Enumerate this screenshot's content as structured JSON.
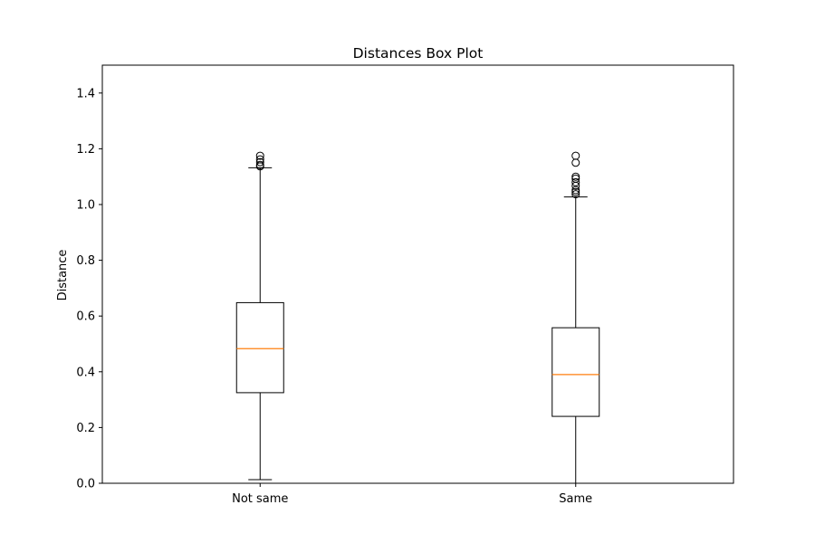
{
  "chart_data": {
    "type": "box",
    "title": "Distances Box Plot",
    "xlabel": "",
    "ylabel": "Distance",
    "ylim": [
      0,
      1.5
    ],
    "yticks": [
      0.0,
      0.2,
      0.4,
      0.6,
      0.8,
      1.0,
      1.2,
      1.4
    ],
    "ytick_labels": [
      "0.0",
      "0.2",
      "0.4",
      "0.6",
      "0.8",
      "1.0",
      "1.2",
      "1.4"
    ],
    "grid": false,
    "categories": [
      "Not same",
      "Same"
    ],
    "boxes": [
      {
        "category": "Not same",
        "whisker_low": 0.013,
        "q1": 0.325,
        "median": 0.483,
        "q3": 0.648,
        "whisker_high": 1.132,
        "outliers": [
          1.137,
          1.142,
          1.152,
          1.162,
          1.175
        ]
      },
      {
        "category": "Same",
        "whisker_low": 0.0,
        "q1": 0.24,
        "median": 0.39,
        "q3": 0.558,
        "whisker_high": 1.027,
        "outliers": [
          1.037,
          1.045,
          1.052,
          1.067,
          1.08,
          1.093,
          1.1,
          1.15,
          1.175
        ]
      }
    ],
    "colors": {
      "box": "#000000",
      "median": "#ff7f0e"
    }
  }
}
